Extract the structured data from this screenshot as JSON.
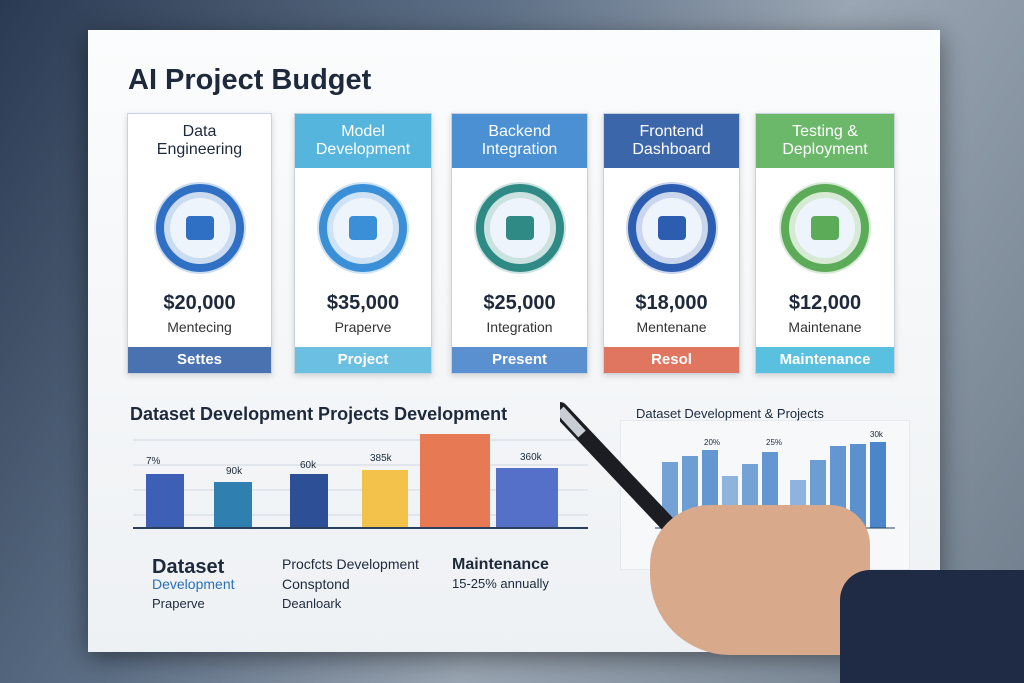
{
  "header": {
    "title": "AI Project Budget"
  },
  "cards": [
    {
      "heading": [
        "Data",
        "Engineering"
      ],
      "amount": "$20,000",
      "note": "Mentecing",
      "footer": "Settes"
    },
    {
      "heading": [
        "Model",
        "Development"
      ],
      "amount": "$35,000",
      "note": "Praperve",
      "footer": "Project"
    },
    {
      "heading": [
        "Backend",
        "Integration"
      ],
      "amount": "$25,000",
      "note": "Integration",
      "footer": "Present"
    },
    {
      "heading": [
        "Frontend",
        "Dashboard"
      ],
      "amount": "$18,000",
      "note": "Mentenane",
      "footer": "Resol"
    },
    {
      "heading": [
        "Testing &",
        "Deployment"
      ],
      "amount": "$12,000",
      "note": "Maintenane",
      "footer": "Maintenance"
    }
  ],
  "left_chart": {
    "title": "Dataset Development Projects Development",
    "bar_labels": [
      "7%",
      "90k",
      "60k",
      "385k",
      "360k"
    ]
  },
  "summary": [
    {
      "lines": [
        "Dataset",
        "Development",
        "Praperve"
      ]
    },
    {
      "lines": [
        "Procfcts Development",
        "Consptond",
        "Deanloark"
      ]
    },
    {
      "lines": [
        "Maintenance",
        "15-25% annually"
      ]
    }
  ],
  "right_chart": {
    "title": "Dataset Development & Projects",
    "labels": [
      "20%",
      "25%",
      "30k"
    ]
  }
}
